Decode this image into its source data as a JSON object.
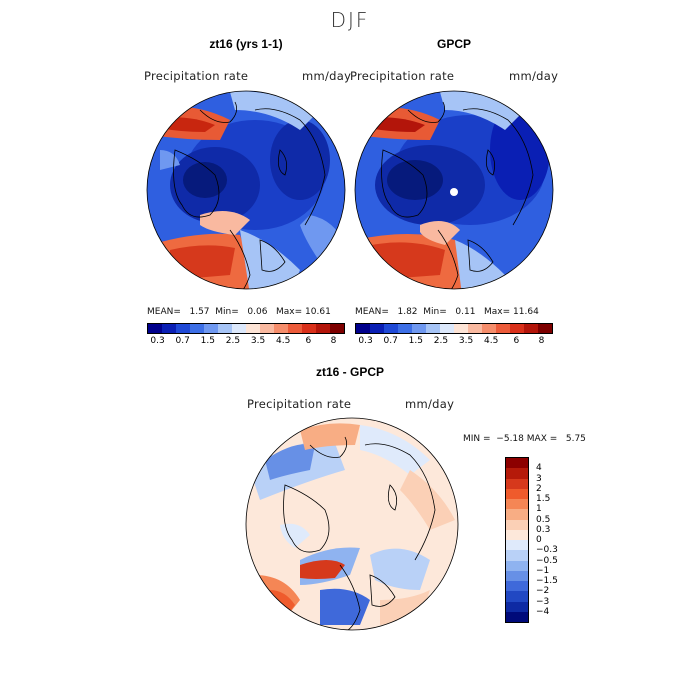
{
  "title": "DJF",
  "panels": [
    {
      "title": "zt16 (yrs 1-1)",
      "field_label": "Precipitation rate",
      "units": "mm/day",
      "mean_label": "MEAN=",
      "mean": "1.57",
      "min_label": "Min=",
      "min": "0.06",
      "max_label": "Max=",
      "max": "10.61"
    },
    {
      "title": "GPCP",
      "field_label": "Precipitation rate",
      "units": "mm/day",
      "mean_label": "MEAN=",
      "mean": "1.82",
      "min_label": "Min=",
      "min": "0.11",
      "max_label": "Max=",
      "max": "11.64"
    }
  ],
  "precip_colorbar": {
    "colors": [
      "#00008c",
      "#0a1fb4",
      "#1f49d6",
      "#3d6fe6",
      "#6f98f0",
      "#a6c4f6",
      "#dce8fb",
      "#fde4d6",
      "#f9b9a0",
      "#f58d6b",
      "#ec5b3a",
      "#d9301a",
      "#b3150a",
      "#7d0000"
    ],
    "tick_labels": [
      "0.3",
      "0.7",
      "1.5",
      "2.5",
      "3.5",
      "4.5",
      "6",
      "8"
    ]
  },
  "diff": {
    "title": "zt16 - GPCP",
    "field_label": "Precipitation rate",
    "units": "mm/day",
    "min_label": "MIN =",
    "min": "−5.18",
    "max_label": "MAX =",
    "max": "5.75",
    "colorbar": {
      "colors": [
        "#8c0000",
        "#b51a0a",
        "#d6391c",
        "#ef5b2c",
        "#f58655",
        "#f8ad84",
        "#fbd0b6",
        "#fde8da",
        "#dfeafb",
        "#b9d1f7",
        "#8fb3f0",
        "#6790e6",
        "#3f69da",
        "#2148c3",
        "#0e2aa3",
        "#000a7a"
      ],
      "tick_labels": [
        "4",
        "3",
        "2",
        "1.5",
        "1",
        "0.5",
        "0.3",
        "0",
        "−0.3",
        "−0.5",
        "−1",
        "−1.5",
        "−2",
        "−3",
        "−4"
      ]
    }
  }
}
